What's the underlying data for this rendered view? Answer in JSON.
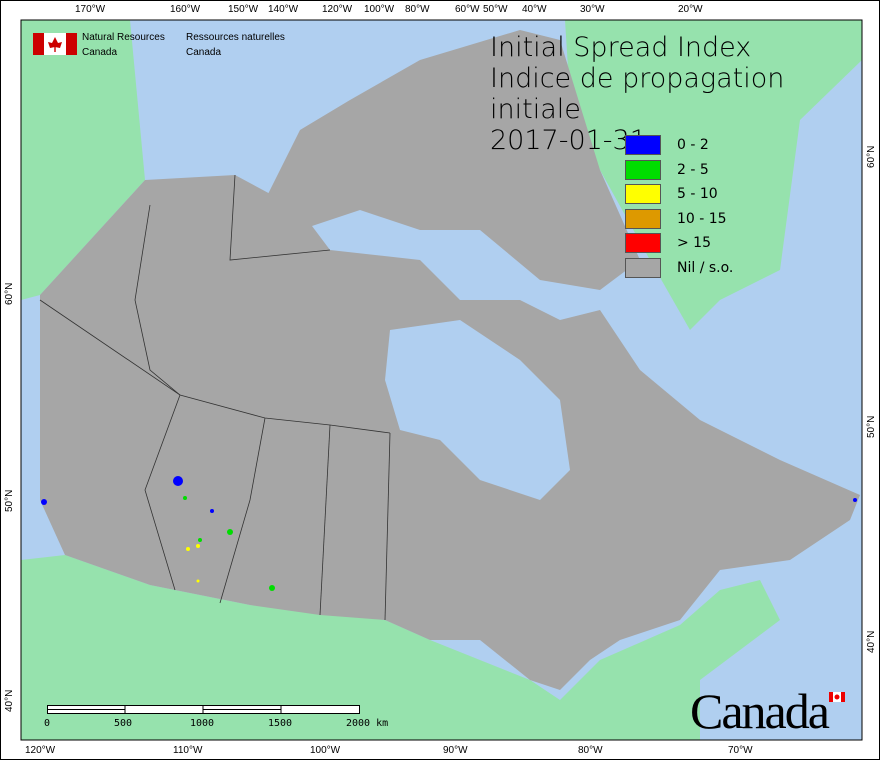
{
  "title": {
    "line1": "Initial Spread Index",
    "line2": "Indice de propagation initiale",
    "date": "2017-01-31"
  },
  "agency": {
    "en_line1": "Natural Resources",
    "en_line2": "Canada",
    "fr_line1": "Ressources naturelles",
    "fr_line2": "Canada",
    "logo": "canada-flag",
    "wordmark": "Canada"
  },
  "legend": [
    {
      "label": "0 - 2",
      "color": "#0000ff"
    },
    {
      "label": "2 - 5",
      "color": "#00dd00"
    },
    {
      "label": "5 - 10",
      "color": "#ffff00"
    },
    {
      "label": "10 - 15",
      "color": "#dd9900"
    },
    {
      "label": "> 15",
      "color": "#ff0000"
    },
    {
      "label": "Nil / s.o.",
      "color": "#a6a6a6"
    }
  ],
  "top_ticks": [
    "170°W",
    "160°W",
    "150°W",
    "140°W",
    "120°W",
    "100°W",
    "80°W",
    "60°W",
    "50°W",
    "40°W",
    "30°W",
    "20°W"
  ],
  "bottom_ticks": [
    "120°W",
    "110°W",
    "100°W",
    "90°W",
    "80°W",
    "70°W"
  ],
  "left_ticks": [
    "60°N",
    "50°N",
    "40°N"
  ],
  "right_ticks": [
    "60°N",
    "50°N",
    "40°N"
  ],
  "scale": {
    "labels": [
      "0",
      "500",
      "1000",
      "1500",
      "2000 km"
    ]
  },
  "colors": {
    "ocean": "#b0cff0",
    "land": "#96e2ad",
    "canada": "#a6a6a6"
  }
}
